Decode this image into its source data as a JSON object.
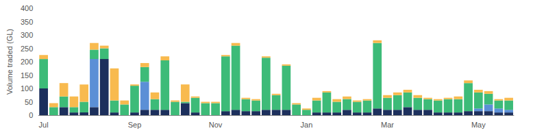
{
  "chart_data": {
    "type": "bar",
    "stacked": true,
    "grid": false,
    "y_label": "Volume traded (GL)",
    "ylim": [
      0,
      400
    ],
    "yticks": [
      0,
      50,
      100,
      150,
      200,
      250,
      300,
      350,
      400
    ],
    "categories": [
      "Jul",
      null,
      null,
      null,
      null,
      null,
      null,
      null,
      null,
      "Sep",
      null,
      null,
      null,
      null,
      null,
      null,
      null,
      "Nov",
      null,
      null,
      null,
      null,
      null,
      null,
      null,
      null,
      "Jan",
      null,
      null,
      null,
      null,
      null,
      null,
      null,
      "Mar",
      null,
      null,
      null,
      null,
      null,
      null,
      null,
      null,
      "May",
      null,
      null,
      null
    ],
    "series": [
      {
        "color": "#1c2f5c",
        "values": [
          100,
          0,
          30,
          10,
          10,
          30,
          210,
          10,
          0,
          10,
          20,
          20,
          20,
          0,
          45,
          10,
          0,
          0,
          15,
          20,
          15,
          15,
          20,
          20,
          20,
          0,
          0,
          10,
          10,
          10,
          20,
          10,
          10,
          25,
          20,
          20,
          30,
          20,
          20,
          10,
          10,
          10,
          15,
          15,
          15,
          10,
          10
        ]
      },
      {
        "color": "#5b8fd6",
        "values": [
          0,
          0,
          0,
          0,
          0,
          180,
          0,
          0,
          0,
          0,
          105,
          0,
          0,
          0,
          0,
          0,
          0,
          0,
          0,
          0,
          0,
          0,
          0,
          0,
          0,
          0,
          0,
          0,
          0,
          0,
          0,
          0,
          0,
          0,
          0,
          0,
          0,
          0,
          0,
          0,
          0,
          0,
          0,
          10,
          25,
          15,
          10
        ]
      },
      {
        "color": "#3dbb78",
        "values": [
          110,
          30,
          40,
          20,
          40,
          35,
          40,
          45,
          40,
          100,
          55,
          40,
          185,
          50,
          5,
          55,
          45,
          45,
          205,
          240,
          45,
          40,
          195,
          55,
          165,
          40,
          20,
          45,
          75,
          40,
          40,
          40,
          45,
          245,
          45,
          55,
          55,
          45,
          40,
          45,
          50,
          50,
          105,
          60,
          40,
          30,
          35
        ]
      },
      {
        "color": "#f8ba4e",
        "values": [
          15,
          15,
          50,
          40,
          65,
          25,
          10,
          120,
          15,
          5,
          15,
          25,
          15,
          5,
          65,
          5,
          5,
          5,
          5,
          10,
          5,
          5,
          5,
          5,
          5,
          5,
          5,
          10,
          5,
          10,
          10,
          5,
          5,
          10,
          10,
          10,
          10,
          10,
          5,
          5,
          5,
          10,
          10,
          10,
          10,
          5,
          10
        ]
      }
    ]
  }
}
